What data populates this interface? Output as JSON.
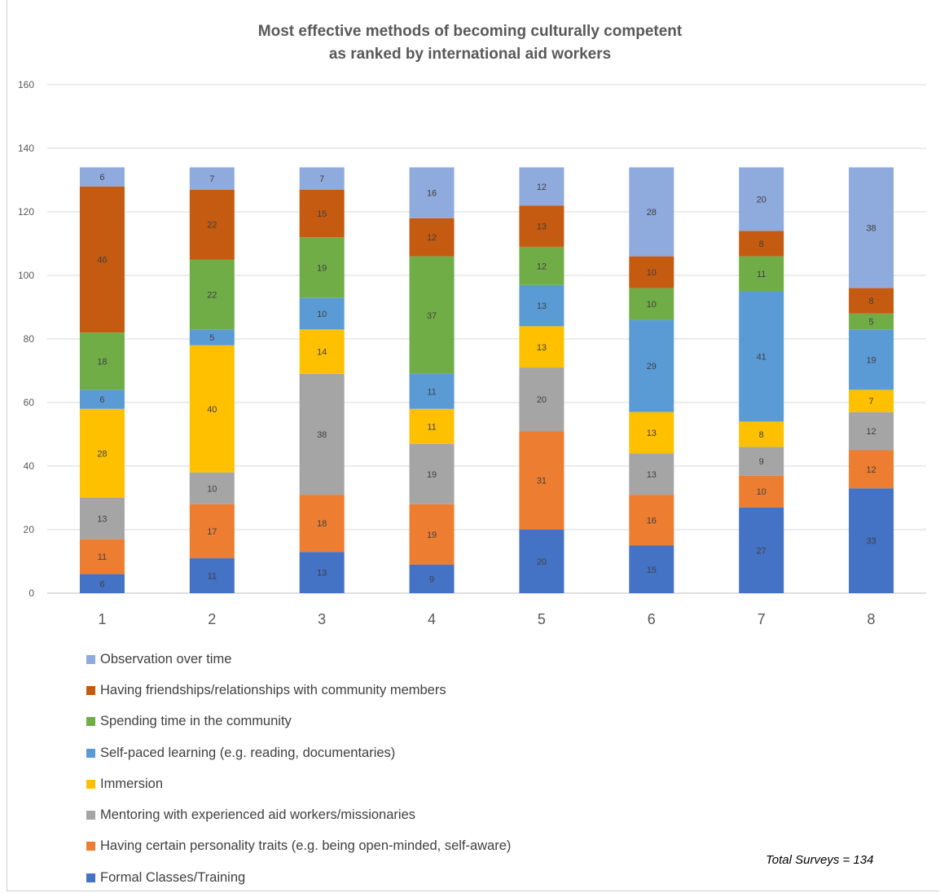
{
  "chart_data": {
    "type": "bar",
    "stacked": true,
    "title": [
      "Most effective methods of becoming culturally competent",
      "as ranked by international aid workers"
    ],
    "xlabel": "",
    "ylabel": "",
    "categories": [
      "1",
      "2",
      "3",
      "4",
      "5",
      "6",
      "7",
      "8"
    ],
    "ylim": [
      0,
      160
    ],
    "yticks": [
      0,
      20,
      40,
      60,
      80,
      100,
      120,
      140,
      160
    ],
    "grid": true,
    "legend_position": "bottom-left",
    "series": [
      {
        "name": "Formal Classes/Training",
        "color": "#4472c4",
        "values": [
          6,
          11,
          13,
          9,
          20,
          15,
          27,
          33
        ]
      },
      {
        "name": "Having certain personality traits (e.g. being open-minded, self-aware)",
        "color": "#ed7d31",
        "values": [
          11,
          17,
          18,
          19,
          31,
          16,
          10,
          12
        ]
      },
      {
        "name": "Mentoring with experienced aid workers/missionaries",
        "color": "#a5a5a5",
        "values": [
          13,
          10,
          38,
          19,
          20,
          13,
          9,
          12
        ]
      },
      {
        "name": "Immersion",
        "color": "#ffc000",
        "values": [
          28,
          40,
          14,
          11,
          13,
          13,
          8,
          7
        ]
      },
      {
        "name": "Self-paced learning (e.g. reading, documentaries)",
        "color": "#5b9bd5",
        "values": [
          6,
          5,
          10,
          11,
          13,
          29,
          41,
          19
        ]
      },
      {
        "name": "Spending time in the community",
        "color": "#70ad47",
        "values": [
          18,
          22,
          19,
          37,
          12,
          10,
          11,
          5
        ]
      },
      {
        "name": "Having friendships/relationships with community members",
        "color": "#c55a11",
        "values": [
          46,
          22,
          15,
          12,
          13,
          10,
          8,
          8
        ]
      },
      {
        "name": "Observation over time",
        "color": "#8faadc",
        "values": [
          6,
          7,
          7,
          16,
          12,
          28,
          20,
          38
        ]
      }
    ],
    "annotation": "Total Surveys = 134"
  }
}
